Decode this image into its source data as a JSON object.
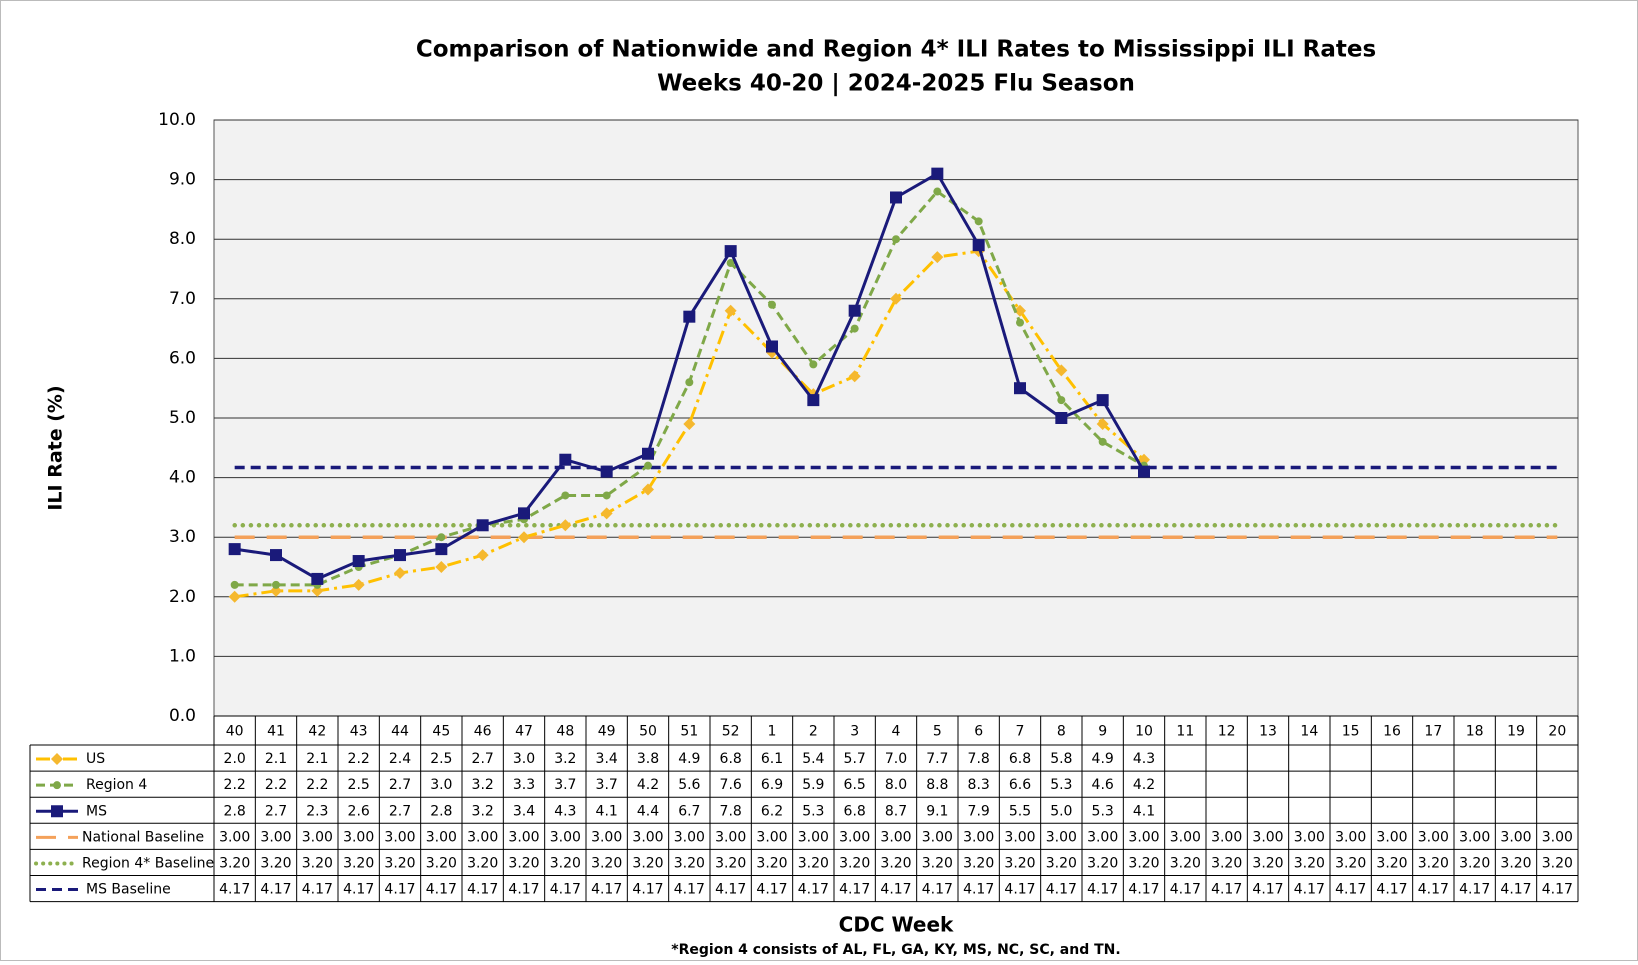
{
  "chart_data": {
    "type": "line",
    "title": "Comparison of Nationwide and Region 4* ILI Rates to Mississippi ILI Rates",
    "subtitle": "Weeks 40-20 | 2024-2025 Flu Season",
    "xlabel": "CDC Week",
    "ylabel": "ILI Rate (%)",
    "footnote": "*Region 4 consists of AL, FL, GA, KY, MS, NC, SC, and TN.",
    "categories": [
      "40",
      "41",
      "42",
      "43",
      "44",
      "45",
      "46",
      "47",
      "48",
      "49",
      "50",
      "51",
      "52",
      "1",
      "2",
      "3",
      "4",
      "5",
      "6",
      "7",
      "8",
      "9",
      "10",
      "11",
      "12",
      "13",
      "14",
      "15",
      "16",
      "17",
      "18",
      "19",
      "20"
    ],
    "ylim": [
      0,
      10
    ],
    "yticks": [
      {
        "value": 0,
        "label": "0.0"
      },
      {
        "value": 1,
        "label": "1.0"
      },
      {
        "value": 2,
        "label": "2.0"
      },
      {
        "value": 3,
        "label": "3.0"
      },
      {
        "value": 4,
        "label": "4.0"
      },
      {
        "value": 5,
        "label": "5.0"
      },
      {
        "value": 6,
        "label": "6.0"
      },
      {
        "value": 7,
        "label": "7.0"
      },
      {
        "value": 8,
        "label": "8.0"
      },
      {
        "value": 9,
        "label": "9.0"
      },
      {
        "value": 10,
        "label": "10.0"
      }
    ],
    "grid": true,
    "series": [
      {
        "name": "US",
        "color": "#FFC000",
        "dash": "14 5 3 5",
        "marker": "diamond",
        "marker_color": "#F5B82E",
        "values": [
          2.0,
          2.1,
          2.1,
          2.2,
          2.4,
          2.5,
          2.7,
          3.0,
          3.2,
          3.4,
          3.8,
          4.9,
          6.8,
          6.1,
          5.4,
          5.7,
          7.0,
          7.7,
          7.8,
          6.8,
          5.8,
          4.9,
          4.3,
          null,
          null,
          null,
          null,
          null,
          null,
          null,
          null,
          null,
          null
        ],
        "value_labels": [
          "2.0",
          "2.1",
          "2.1",
          "2.2",
          "2.4",
          "2.5",
          "2.7",
          "3.0",
          "3.2",
          "3.4",
          "3.8",
          "4.9",
          "6.8",
          "6.1",
          "5.4",
          "5.7",
          "7.0",
          "7.7",
          "7.8",
          "6.8",
          "5.8",
          "4.9",
          "4.3",
          null,
          null,
          null,
          null,
          null,
          null,
          null,
          null,
          null,
          null
        ]
      },
      {
        "name": "Region 4",
        "color": "#7FA848",
        "dash": "9 5",
        "marker": "circle",
        "marker_color": "#7FA848",
        "values": [
          2.2,
          2.2,
          2.2,
          2.5,
          2.7,
          3.0,
          3.2,
          3.3,
          3.7,
          3.7,
          4.2,
          5.6,
          7.6,
          6.9,
          5.9,
          6.5,
          8.0,
          8.8,
          8.3,
          6.6,
          5.3,
          4.6,
          4.2,
          null,
          null,
          null,
          null,
          null,
          null,
          null,
          null,
          null,
          null
        ],
        "value_labels": [
          "2.2",
          "2.2",
          "2.2",
          "2.5",
          "2.7",
          "3.0",
          "3.2",
          "3.3",
          "3.7",
          "3.7",
          "4.2",
          "5.6",
          "7.6",
          "6.9",
          "5.9",
          "6.5",
          "8.0",
          "8.8",
          "8.3",
          "6.6",
          "5.3",
          "4.6",
          "4.2",
          null,
          null,
          null,
          null,
          null,
          null,
          null,
          null,
          null,
          null
        ]
      },
      {
        "name": "MS",
        "color": "#1A1A7A",
        "dash": "none",
        "marker": "square",
        "marker_color": "#1A1A7A",
        "values": [
          2.8,
          2.7,
          2.3,
          2.6,
          2.7,
          2.8,
          3.2,
          3.4,
          4.3,
          4.1,
          4.4,
          6.7,
          7.8,
          6.2,
          5.3,
          6.8,
          8.7,
          9.1,
          7.9,
          5.5,
          5.0,
          5.3,
          4.1,
          null,
          null,
          null,
          null,
          null,
          null,
          null,
          null,
          null,
          null
        ],
        "value_labels": [
          "2.8",
          "2.7",
          "2.3",
          "2.6",
          "2.7",
          "2.8",
          "3.2",
          "3.4",
          "4.3",
          "4.1",
          "4.4",
          "6.7",
          "7.8",
          "6.2",
          "5.3",
          "6.8",
          "8.7",
          "9.1",
          "7.9",
          "5.5",
          "5.0",
          "5.3",
          "4.1",
          null,
          null,
          null,
          null,
          null,
          null,
          null,
          null,
          null,
          null
        ]
      },
      {
        "name": "National Baseline",
        "color": "#F4A15A",
        "dash": "20 12",
        "marker": "none",
        "values": [
          3,
          3,
          3,
          3,
          3,
          3,
          3,
          3,
          3,
          3,
          3,
          3,
          3,
          3,
          3,
          3,
          3,
          3,
          3,
          3,
          3,
          3,
          3,
          3,
          3,
          3,
          3,
          3,
          3,
          3,
          3,
          3,
          3
        ],
        "value_labels": [
          "3.00",
          "3.00",
          "3.00",
          "3.00",
          "3.00",
          "3.00",
          "3.00",
          "3.00",
          "3.00",
          "3.00",
          "3.00",
          "3.00",
          "3.00",
          "3.00",
          "3.00",
          "3.00",
          "3.00",
          "3.00",
          "3.00",
          "3.00",
          "3.00",
          "3.00",
          "3.00",
          "3.00",
          "3.00",
          "3.00",
          "3.00",
          "3.00",
          "3.00",
          "3.00",
          "3.00",
          "3.00",
          "3.00"
        ]
      },
      {
        "name": "Region 4* Baseline",
        "color": "#8DB04F",
        "dash": "0.1 8",
        "marker": "none",
        "values": [
          3.2,
          3.2,
          3.2,
          3.2,
          3.2,
          3.2,
          3.2,
          3.2,
          3.2,
          3.2,
          3.2,
          3.2,
          3.2,
          3.2,
          3.2,
          3.2,
          3.2,
          3.2,
          3.2,
          3.2,
          3.2,
          3.2,
          3.2,
          3.2,
          3.2,
          3.2,
          3.2,
          3.2,
          3.2,
          3.2,
          3.2,
          3.2,
          3.2
        ],
        "value_labels": [
          "3.20",
          "3.20",
          "3.20",
          "3.20",
          "3.20",
          "3.20",
          "3.20",
          "3.20",
          "3.20",
          "3.20",
          "3.20",
          "3.20",
          "3.20",
          "3.20",
          "3.20",
          "3.20",
          "3.20",
          "3.20",
          "3.20",
          "3.20",
          "3.20",
          "3.20",
          "3.20",
          "3.20",
          "3.20",
          "3.20",
          "3.20",
          "3.20",
          "3.20",
          "3.20",
          "3.20",
          "3.20",
          "3.20"
        ]
      },
      {
        "name": "MS Baseline",
        "color": "#1A1A7A",
        "dash": "10 6",
        "marker": "none",
        "values": [
          4.17,
          4.17,
          4.17,
          4.17,
          4.17,
          4.17,
          4.17,
          4.17,
          4.17,
          4.17,
          4.17,
          4.17,
          4.17,
          4.17,
          4.17,
          4.17,
          4.17,
          4.17,
          4.17,
          4.17,
          4.17,
          4.17,
          4.17,
          4.17,
          4.17,
          4.17,
          4.17,
          4.17,
          4.17,
          4.17,
          4.17,
          4.17,
          4.17
        ],
        "value_labels": [
          "4.17",
          "4.17",
          "4.17",
          "4.17",
          "4.17",
          "4.17",
          "4.17",
          "4.17",
          "4.17",
          "4.17",
          "4.17",
          "4.17",
          "4.17",
          "4.17",
          "4.17",
          "4.17",
          "4.17",
          "4.17",
          "4.17",
          "4.17",
          "4.17",
          "4.17",
          "4.17",
          "4.17",
          "4.17",
          "4.17",
          "4.17",
          "4.17",
          "4.17",
          "4.17",
          "4.17",
          "4.17",
          "4.17"
        ]
      }
    ]
  }
}
